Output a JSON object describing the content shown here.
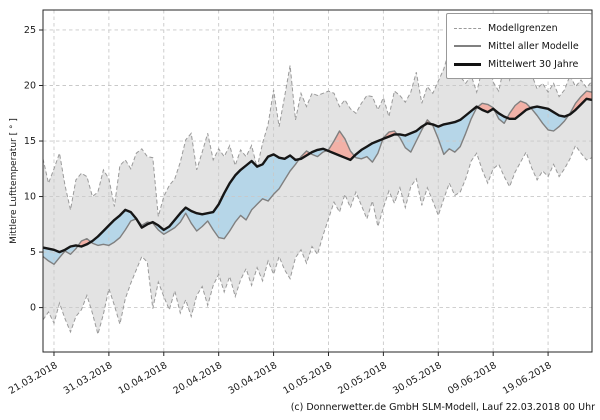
{
  "caption": "(c) Donnerwetter.de GmbH SLM-Modell, Lauf 22.03.2018 00 Uhr",
  "y_axis": {
    "label": "Mittlere Lufttemperatur [ ° ]"
  },
  "legend": {
    "items": [
      {
        "label": "Modellgrenzen",
        "style": "dashed-gray"
      },
      {
        "label": "Mittel aller Modelle",
        "style": "solid-gray"
      },
      {
        "label": "Mittelwert 30 Jahre",
        "style": "solid-black"
      }
    ]
  },
  "colors": {
    "band_fill": "#e3e3e3",
    "band_edge": "#9a9a9a",
    "warm_fill": "#f2b1a7",
    "cool_fill": "#b6d6e8",
    "model_mean_line": "#808080",
    "climate_mean_line": "#161616",
    "grid": "#c9c9c9",
    "spine": "#262626",
    "tick_text": "#1a1a1a"
  },
  "chart_data": {
    "type": "line",
    "title": "",
    "ylabel": "Mittlere Lufttemperatur [ ° ]",
    "ylim": [
      -4.0,
      26.8
    ],
    "y_ticks": [
      0,
      5,
      10,
      15,
      20,
      25
    ],
    "x_interval": "daily",
    "n_points": 101,
    "x_ticks": [
      {
        "label": "21.03.2018",
        "i": 2
      },
      {
        "label": "31.03.2018",
        "i": 12
      },
      {
        "label": "10.04.2018",
        "i": 22
      },
      {
        "label": "20.04.2018",
        "i": 32
      },
      {
        "label": "30.04.2018",
        "i": 42
      },
      {
        "label": "10.05.2018",
        "i": 52
      },
      {
        "label": "20.05.2018",
        "i": 62
      },
      {
        "label": "30.05.2018",
        "i": 72
      },
      {
        "label": "09.06.2018",
        "i": 82
      },
      {
        "label": "19.06.2018",
        "i": 92
      }
    ],
    "legend_position": "upper right",
    "grid": true,
    "fills": {
      "band": "Modellgrenzen (min-max aller Modelle)",
      "warm": "Mittel aller Modelle ueber Mittelwert 30 Jahre",
      "cool": "Mittel aller Modelle unter Mittelwert 30 Jahre"
    },
    "series": [
      {
        "name": "Modellgrenzen (oben)",
        "role": "band-upper",
        "values": [
          13.4,
          11.2,
          12.5,
          13.9,
          11.0,
          8.8,
          11.5,
          12.1,
          11.8,
          10.0,
          10.4,
          12.4,
          11.6,
          9.1,
          12.8,
          13.3,
          12.5,
          13.9,
          14.3,
          13.6,
          13.5,
          8.2,
          10.0,
          11.0,
          11.6,
          13.1,
          15.1,
          15.7,
          12.4,
          14.0,
          15.7,
          13.3,
          14.3,
          13.6,
          14.6,
          12.8,
          14.2,
          13.6,
          14.6,
          12.6,
          14.8,
          16.5,
          19.6,
          16.3,
          19.0,
          21.8,
          16.9,
          19.3,
          18.1,
          19.3,
          19.1,
          19.3,
          19.5,
          19.3,
          18.1,
          18.7,
          17.9,
          17.5,
          18.4,
          19.1,
          19.0,
          17.8,
          18.9,
          17.2,
          19.5,
          19.1,
          18.5,
          19.4,
          21.2,
          18.4,
          19.9,
          19.3,
          20.4,
          21.5,
          23.2,
          22.0,
          20.8,
          20.2,
          20.9,
          19.4,
          21.5,
          22.9,
          20.3,
          19.5,
          21.8,
          20.5,
          23.2,
          21.0,
          22.9,
          21.0,
          19.7,
          20.2,
          19.4,
          20.2,
          19.0,
          19.6,
          20.9,
          19.9,
          20.5,
          19.8,
          20.4
        ]
      },
      {
        "name": "Modellgrenzen (unten)",
        "role": "band-lower",
        "values": [
          -1.1,
          -0.4,
          -1.4,
          0.4,
          -1.0,
          -2.2,
          -0.8,
          -0.2,
          1.1,
          -0.5,
          -2.4,
          -0.6,
          1.7,
          0.2,
          -1.5,
          0.8,
          2.2,
          3.4,
          4.6,
          4.1,
          -0.1,
          2.3,
          1.0,
          -0.2,
          1.5,
          -0.5,
          0.7,
          -0.8,
          1.1,
          1.9,
          0.2,
          2.0,
          3.0,
          1.4,
          2.8,
          1.0,
          2.5,
          3.5,
          2.0,
          3.6,
          2.4,
          4.2,
          3.0,
          4.6,
          3.4,
          2.6,
          4.5,
          5.2,
          4.0,
          5.5,
          4.8,
          6.5,
          8.0,
          9.5,
          8.6,
          10.2,
          9.0,
          10.4,
          9.2,
          8.0,
          9.6,
          7.3,
          9.0,
          10.5,
          9.4,
          10.8,
          9.0,
          10.9,
          11.6,
          9.2,
          10.8,
          9.6,
          8.3,
          9.8,
          11.2,
          10.1,
          10.4,
          11.6,
          13.2,
          13.9,
          12.4,
          11.2,
          12.5,
          12.9,
          11.8,
          10.9,
          12.2,
          13.1,
          14.0,
          12.6,
          11.5,
          12.3,
          11.8,
          12.9,
          11.8,
          12.5,
          13.4,
          14.6,
          13.9,
          13.3,
          13.5
        ]
      },
      {
        "name": "Mittel aller Modelle",
        "role": "model-mean",
        "values": [
          4.6,
          4.2,
          3.9,
          4.5,
          5.1,
          4.8,
          5.3,
          6.0,
          6.2,
          5.8,
          5.6,
          5.7,
          5.6,
          5.9,
          6.3,
          7.0,
          7.8,
          8.0,
          7.4,
          7.7,
          7.6,
          7.0,
          6.6,
          6.9,
          7.2,
          7.7,
          8.5,
          7.6,
          6.9,
          7.3,
          7.8,
          7.0,
          6.3,
          6.2,
          6.9,
          7.7,
          8.3,
          7.9,
          8.8,
          9.3,
          9.8,
          9.6,
          10.2,
          10.7,
          11.5,
          12.3,
          12.9,
          13.6,
          14.1,
          13.8,
          13.6,
          14.0,
          14.2,
          15.0,
          15.9,
          15.2,
          14.1,
          13.5,
          13.4,
          13.6,
          13.1,
          13.9,
          15.3,
          15.8,
          15.9,
          15.3,
          14.4,
          14.0,
          15.0,
          16.0,
          16.9,
          16.4,
          15.2,
          13.8,
          14.3,
          14.0,
          14.5,
          15.7,
          17.0,
          18.0,
          18.4,
          18.3,
          18.0,
          17.0,
          16.6,
          17.5,
          18.2,
          18.6,
          18.4,
          17.9,
          17.3,
          16.6,
          16.0,
          15.9,
          16.3,
          16.8,
          17.5,
          18.4,
          19.0,
          19.5,
          19.4
        ]
      },
      {
        "name": "Mittelwert 30 Jahre",
        "role": "climate-mean",
        "values": [
          5.4,
          5.3,
          5.2,
          5.0,
          5.2,
          5.5,
          5.6,
          5.5,
          5.7,
          6.0,
          6.4,
          6.9,
          7.4,
          7.9,
          8.3,
          8.8,
          8.6,
          8.0,
          7.2,
          7.5,
          7.7,
          7.4,
          7.0,
          7.3,
          7.9,
          8.5,
          9.0,
          8.7,
          8.5,
          8.4,
          8.5,
          8.6,
          9.3,
          10.3,
          11.2,
          11.9,
          12.4,
          12.8,
          13.2,
          12.7,
          12.9,
          13.6,
          13.8,
          13.5,
          13.4,
          13.7,
          13.3,
          13.4,
          13.7,
          14.0,
          14.2,
          14.3,
          14.1,
          13.9,
          13.7,
          13.5,
          13.3,
          13.8,
          14.2,
          14.5,
          14.8,
          15.0,
          15.2,
          15.4,
          15.6,
          15.6,
          15.5,
          15.7,
          15.9,
          16.3,
          16.6,
          16.5,
          16.3,
          16.5,
          16.6,
          16.7,
          16.9,
          17.3,
          17.7,
          18.1,
          17.8,
          17.6,
          17.9,
          17.5,
          17.2,
          17.0,
          17.0,
          17.4,
          17.8,
          18.0,
          18.1,
          18.0,
          17.9,
          17.6,
          17.3,
          17.2,
          17.4,
          17.8,
          18.3,
          18.8,
          18.7
        ]
      }
    ]
  }
}
